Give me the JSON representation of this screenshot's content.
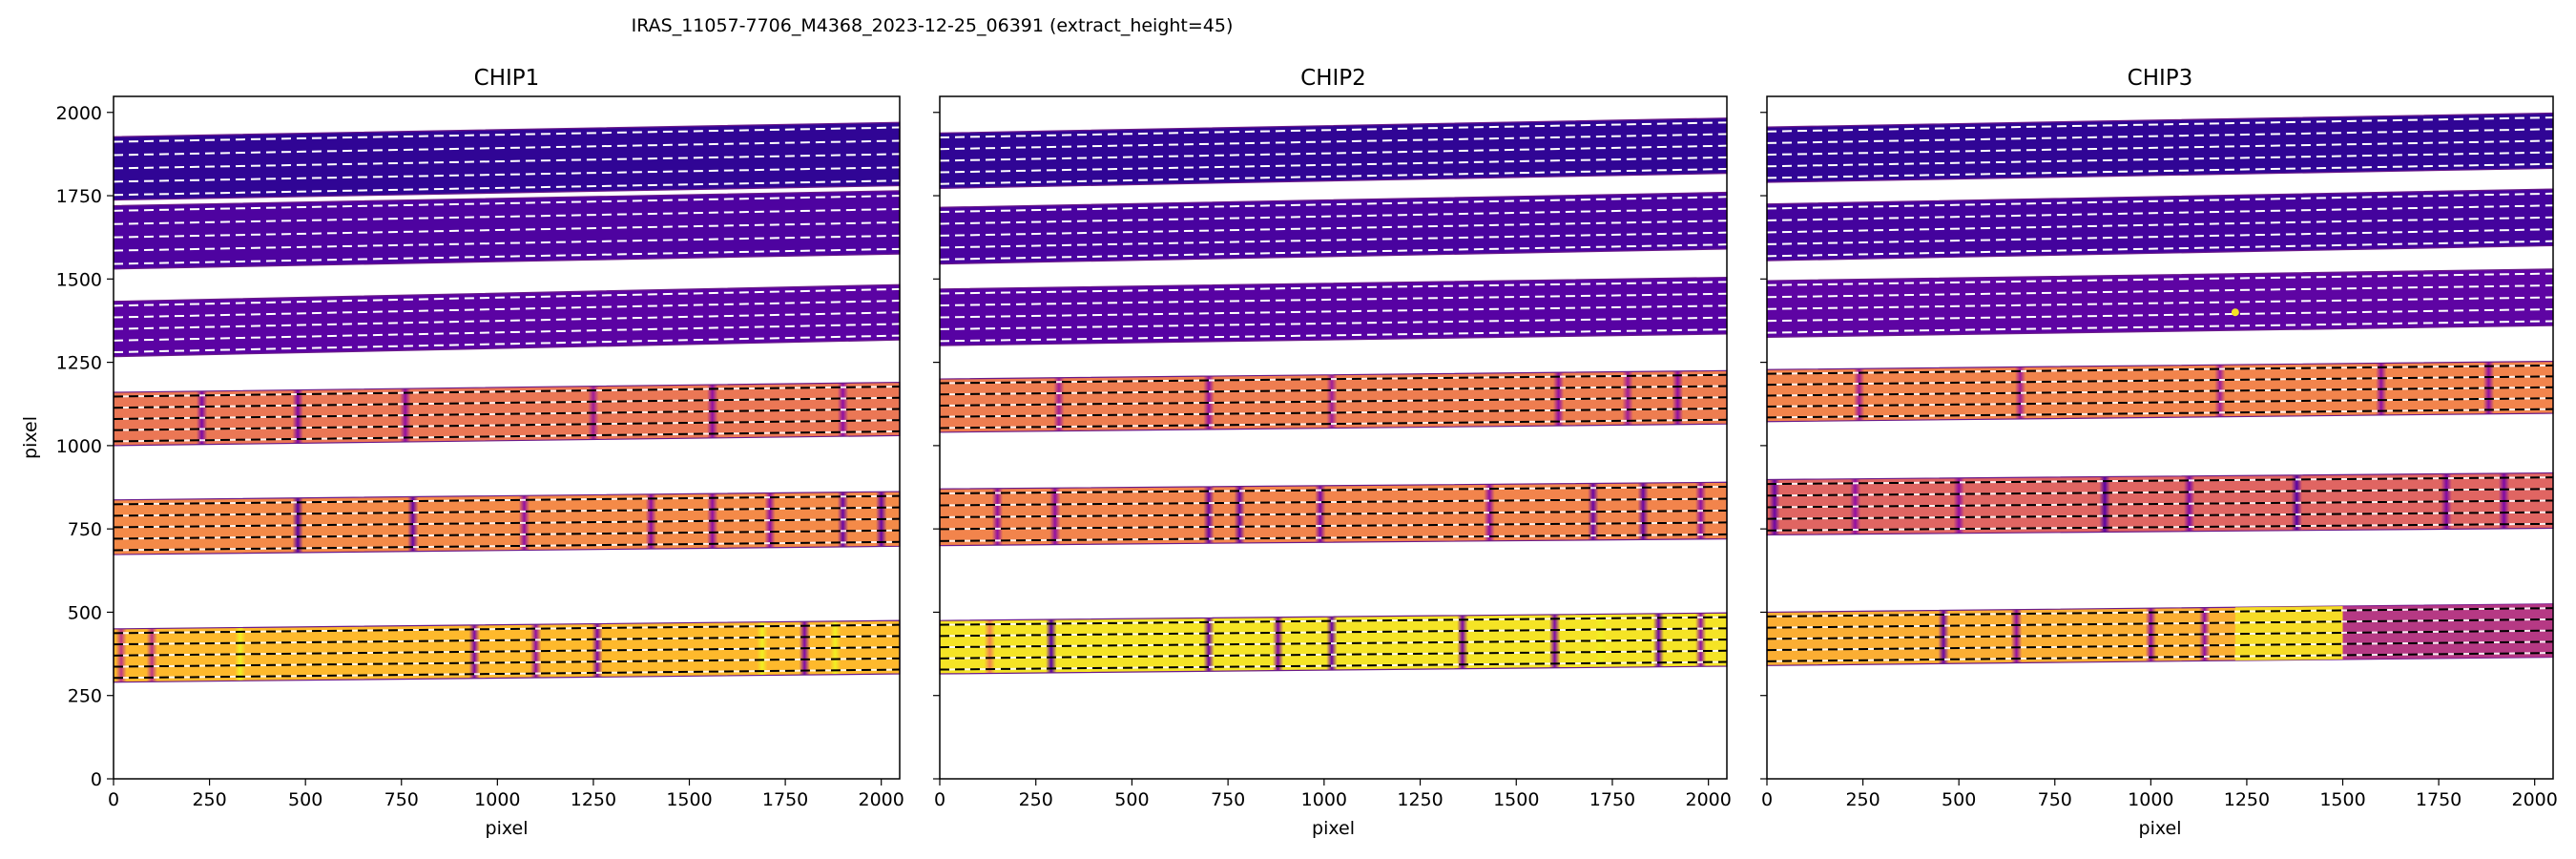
{
  "suptitle": "IRAS_11057-7706_M4368_2023-12-25_06391  (extract_height=45)",
  "chart_data": [
    {
      "type": "heatmap",
      "title": "CHIP1",
      "xlabel": "pixel",
      "ylabel": "pixel",
      "xlim": [
        0,
        2048
      ],
      "ylim": [
        0,
        2048
      ],
      "xticks": [
        0,
        250,
        500,
        750,
        1000,
        1250,
        1500,
        1750,
        2000
      ],
      "yticks": [
        0,
        250,
        500,
        750,
        1000,
        1250,
        1500,
        1750,
        2000
      ],
      "colormap": "plasma",
      "orders": [
        {
          "center_y": [
            1832,
            1875
          ],
          "half_width": 95,
          "level": 0.07,
          "lines": []
        },
        {
          "center_y": [
            1625,
            1670
          ],
          "half_width": 95,
          "level": 0.13,
          "lines": []
        },
        {
          "center_y": [
            1350,
            1400
          ],
          "half_width": 83,
          "level": 0.16,
          "lines": []
        },
        {
          "center_y": [
            1080,
            1110
          ],
          "half_width": 80,
          "level": 0.66,
          "lines": [
            [
              230,
              0.25
            ],
            [
              480,
              0.25
            ],
            [
              760,
              0.3
            ],
            [
              1250,
              0.35
            ],
            [
              1560,
              0.3
            ],
            [
              1900,
              0.3
            ]
          ]
        },
        {
          "center_y": [
            755,
            780
          ],
          "half_width": 82,
          "level": 0.72,
          "lines": [
            [
              480,
              0.15
            ],
            [
              780,
              0.2
            ],
            [
              1070,
              0.3
            ],
            [
              1400,
              0.3
            ],
            [
              1560,
              0.3
            ],
            [
              1710,
              0.3
            ],
            [
              1900,
              0.2
            ],
            [
              2000,
              0.2
            ]
          ]
        },
        {
          "center_y": [
            370,
            395
          ],
          "half_width": 80,
          "level": 0.85,
          "lines": [
            [
              20,
              0.45
            ],
            [
              100,
              0.45
            ],
            [
              330,
              0.98
            ],
            [
              940,
              0.25
            ],
            [
              1100,
              0.3
            ],
            [
              1260,
              0.25
            ],
            [
              1690,
              0.98
            ],
            [
              1800,
              0.25
            ],
            [
              1880,
              0.98
            ]
          ]
        }
      ]
    },
    {
      "type": "heatmap",
      "title": "CHIP2",
      "xlabel": "pixel",
      "ylabel": "",
      "xlim": [
        0,
        2048
      ],
      "ylim": [
        0,
        2048
      ],
      "xticks": [
        0,
        250,
        500,
        750,
        1000,
        1250,
        1500,
        1750,
        2000
      ],
      "yticks": [
        0,
        250,
        500,
        750,
        1000,
        1250,
        1500,
        1750,
        2000
      ],
      "colormap": "plasma",
      "orders": [
        {
          "center_y": [
            1855,
            1900
          ],
          "half_width": 83,
          "level": 0.07,
          "lines": []
        },
        {
          "center_y": [
            1630,
            1675
          ],
          "half_width": 85,
          "level": 0.12,
          "lines": []
        },
        {
          "center_y": [
            1385,
            1420
          ],
          "half_width": 85,
          "level": 0.15,
          "lines": []
        },
        {
          "center_y": [
            1120,
            1145
          ],
          "half_width": 80,
          "level": 0.68,
          "lines": [
            [
              310,
              0.35
            ],
            [
              700,
              0.3
            ],
            [
              1020,
              0.35
            ],
            [
              1610,
              0.3
            ],
            [
              1790,
              0.35
            ],
            [
              1920,
              0.3
            ]
          ]
        },
        {
          "center_y": [
            785,
            805
          ],
          "half_width": 85,
          "level": 0.7,
          "lines": [
            [
              150,
              0.3
            ],
            [
              300,
              0.3
            ],
            [
              700,
              0.2
            ],
            [
              780,
              0.2
            ],
            [
              990,
              0.25
            ],
            [
              1430,
              0.3
            ],
            [
              1700,
              0.2
            ],
            [
              1830,
              0.2
            ],
            [
              1980,
              0.3
            ]
          ]
        },
        {
          "center_y": [
            395,
            418
          ],
          "half_width": 80,
          "level": 0.95,
          "lines": [
            [
              130,
              0.7
            ],
            [
              290,
              0.15
            ],
            [
              700,
              0.2
            ],
            [
              880,
              0.25
            ],
            [
              1020,
              0.2
            ],
            [
              1360,
              0.25
            ],
            [
              1600,
              0.25
            ],
            [
              1720,
              0.98
            ],
            [
              1870,
              0.2
            ],
            [
              1980,
              0.3
            ]
          ]
        }
      ]
    },
    {
      "type": "heatmap",
      "title": "CHIP3",
      "xlabel": "pixel",
      "ylabel": "",
      "xlim": [
        0,
        2048
      ],
      "ylim": [
        0,
        2048
      ],
      "xticks": [
        0,
        250,
        500,
        750,
        1000,
        1250,
        1500,
        1750,
        2000
      ],
      "yticks": [
        0,
        250,
        500,
        750,
        1000,
        1250,
        1500,
        1750,
        2000
      ],
      "colormap": "plasma",
      "orders": [
        {
          "center_y": [
            1873,
            1915
          ],
          "half_width": 83,
          "level": 0.07,
          "lines": []
        },
        {
          "center_y": [
            1640,
            1685
          ],
          "half_width": 85,
          "level": 0.11,
          "lines": []
        },
        {
          "center_y": [
            1410,
            1445
          ],
          "half_width": 85,
          "level": 0.17,
          "lines": []
        },
        {
          "center_y": [
            1150,
            1175
          ],
          "half_width": 78,
          "level": 0.7,
          "lines": [
            [
              240,
              0.35
            ],
            [
              660,
              0.35
            ],
            [
              1180,
              0.35
            ],
            [
              1600,
              0.3
            ],
            [
              1880,
              0.3
            ]
          ]
        },
        {
          "center_y": [
            815,
            835
          ],
          "half_width": 83,
          "level": 0.6,
          "lines": [
            [
              20,
              0.2
            ],
            [
              230,
              0.3
            ],
            [
              500,
              0.3
            ],
            [
              880,
              0.15
            ],
            [
              1100,
              0.25
            ],
            [
              1380,
              0.15
            ],
            [
              1770,
              0.25
            ],
            [
              1920,
              0.25
            ]
          ]
        },
        {
          "center_y": [
            420,
            445
          ],
          "half_width": 80,
          "level": 0.82,
          "lines": [
            [
              460,
              0.2
            ],
            [
              650,
              0.3
            ],
            [
              1000,
              0.3
            ],
            [
              1140,
              0.3
            ]
          ]
        }
      ],
      "hot_regions": [
        {
          "order": 5,
          "x": [
            1220,
            1500
          ],
          "level": 0.95
        },
        {
          "order": 5,
          "x": [
            1500,
            2048
          ],
          "level": 0.38
        }
      ],
      "hot_pixel": {
        "x": 1220,
        "y": 1400
      }
    }
  ]
}
